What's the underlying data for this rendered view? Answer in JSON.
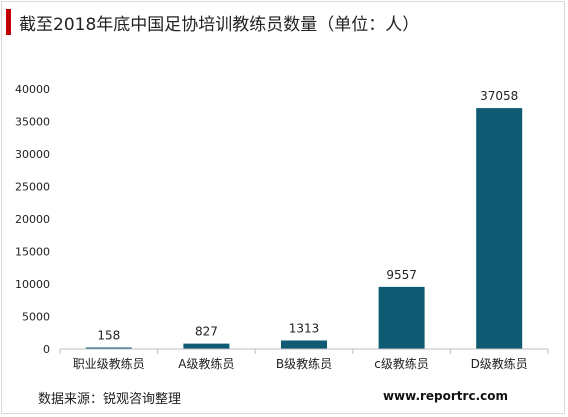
{
  "title": "截至2018年底中国足协培训教练员数量（单位：人）",
  "source": "数据来源：锐观咨询整理",
  "website": "www.reportrc.com",
  "colors": {
    "bar": "#0e5a73",
    "title_accent": "#c00000",
    "axis": "#bfbfbf",
    "text": "#222222"
  },
  "chart_data": {
    "type": "bar",
    "title": "截至2018年底中国足协培训教练员数量（单位：人）",
    "xlabel": "",
    "ylabel": "",
    "categories": [
      "职业级教练员",
      "A级教练员",
      "B级教练员",
      "c级教练员",
      "D级教练员"
    ],
    "values": [
      158,
      827,
      1313,
      9557,
      37058
    ],
    "ylim": [
      0,
      40000
    ],
    "yticks": [
      0,
      5000,
      10000,
      15000,
      20000,
      25000,
      30000,
      35000,
      40000
    ],
    "grid": false,
    "data_labels": true
  }
}
